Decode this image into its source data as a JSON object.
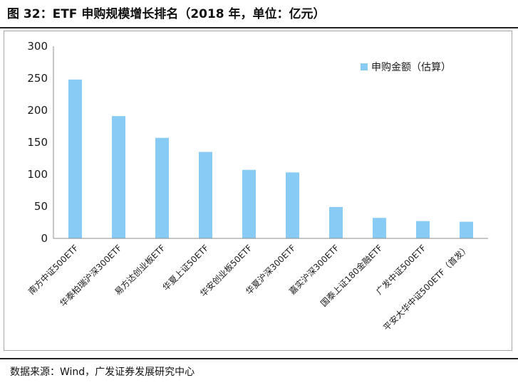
{
  "figure": {
    "title": "图 32：ETF 申购规模增长排名（2018 年，单位：亿元）",
    "source": "数据来源：Wind，广发证券发展研究中心"
  },
  "colors": {
    "bar": "#88cbf5",
    "axis": "#8c8c8c",
    "text": "#1a1a1a"
  },
  "chart_data": {
    "type": "bar",
    "title": "",
    "xlabel": "",
    "ylabel": "",
    "ylim": [
      0,
      300
    ],
    "yticks": [
      0,
      50,
      100,
      150,
      200,
      250,
      300
    ],
    "grid": false,
    "legend_position": "top-right",
    "categories": [
      "南方中证500ETF",
      "华泰柏瑞沪深300ETF",
      "易方达创业板ETF",
      "华夏上证50ETF",
      "华安创业板50ETF",
      "华夏沪深300ETF",
      "嘉实沪深300ETF",
      "国泰上证180金融ETF",
      "广发中证500ETF",
      "平安大华中证500ETF（首发）"
    ],
    "series": [
      {
        "name": "申购金额（估算）",
        "values": [
          248,
          191,
          157,
          135,
          107,
          103,
          49,
          32,
          27,
          26
        ]
      }
    ]
  }
}
